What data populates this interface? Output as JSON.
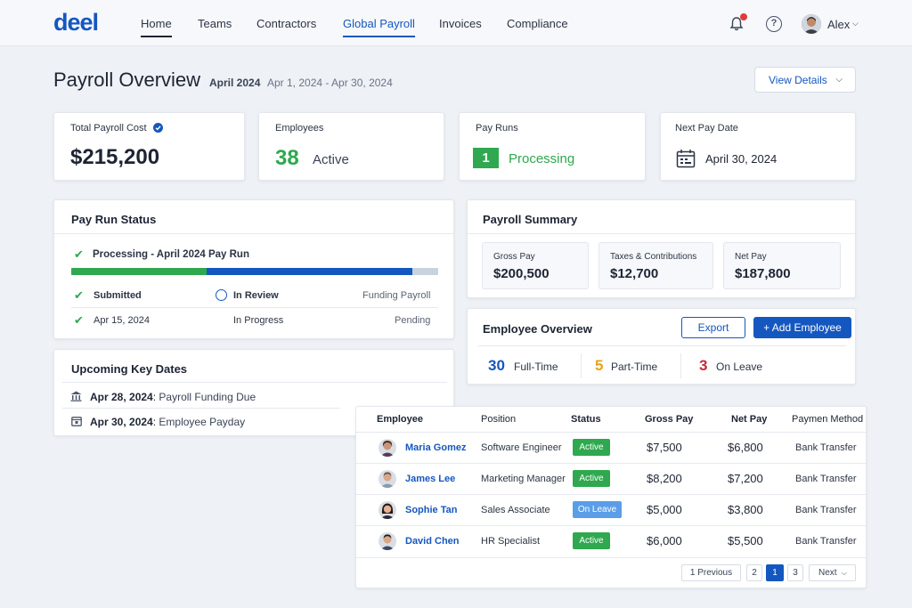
{
  "app": {
    "logo": "deel"
  },
  "nav": {
    "items": [
      "Home",
      "Teams",
      "Contractors",
      "Global Payroll",
      "Invoices",
      "Compliance"
    ]
  },
  "user": {
    "name": "Alex"
  },
  "header": {
    "title": "Payroll Overview",
    "period": "April 2024",
    "range": "Apr 1, 2024 - Apr 30, 2024",
    "view_details": "View Details"
  },
  "stats": {
    "total_cost_label": "Total Payroll Cost",
    "total_cost_value": "$215,200",
    "employees_label": "Employees",
    "employees_count": "38",
    "employees_state": "Active",
    "pay_runs_label": "Pay Runs",
    "pay_runs_count": "1",
    "pay_runs_state": "Processing",
    "next_pay_label": "Next Pay Date",
    "next_pay_value": "April 30, 2024"
  },
  "pay_run_status": {
    "title": "Pay Run Status",
    "headline": "Processing - April 2024 Pay Run",
    "progress": {
      "green_fraction": 0.37,
      "blue_fraction": 0.56
    },
    "steps": [
      "Submitted",
      "In Review",
      "Funding Payroll"
    ],
    "details": [
      "Apr 15, 2024",
      "In Progress",
      "Pending"
    ]
  },
  "key_dates": {
    "title": "Upcoming Key Dates",
    "items": [
      {
        "date": "Apr 28, 2024",
        "label": "Payroll Funding Due"
      },
      {
        "date": "Apr 30, 2024",
        "label": "Employee Payday"
      }
    ]
  },
  "summary": {
    "title": "Payroll Summary",
    "gross_label": "Gross Pay",
    "gross_value": "$200,500",
    "taxes_label": "Taxes & Contributions",
    "taxes_value": "$12,700",
    "net_label": "Net Pay",
    "net_value": "$187,800"
  },
  "employee_overview": {
    "title": "Employee Overview",
    "export": "Export",
    "add": "+ Add Employee",
    "fulltime_num": "30",
    "fulltime_label": "Full-Time",
    "parttime_num": "5",
    "parttime_label": "Part-Time",
    "leave_num": "3",
    "leave_label": "On Leave"
  },
  "table": {
    "headers": [
      "Employee",
      "Position",
      "Status",
      "Gross Pay",
      "Net Pay",
      "Paymen Method"
    ],
    "rows": [
      {
        "name": "Maria Gomez",
        "position": "Software Engineer",
        "status": "Active",
        "gross": "$7,500",
        "net": "$6,800",
        "method": "Bank Transfer"
      },
      {
        "name": "James Lee",
        "position": "Marketing Manager",
        "status": "Active",
        "gross": "$8,200",
        "net": "$7,200",
        "method": "Bank Transfer"
      },
      {
        "name": "Sophie Tan",
        "position": "Sales Associate",
        "status": "On Leave",
        "gross": "$5,000",
        "net": "$3,800",
        "method": "Bank Transfer"
      },
      {
        "name": "David Chen",
        "position": "HR Specialist",
        "status": "Active",
        "gross": "$6,000",
        "net": "$5,500",
        "method": "Bank Transfer"
      }
    ],
    "pagination": {
      "prev": "1  Previous",
      "pages": [
        "2",
        "1",
        "3"
      ],
      "next": "Next"
    }
  },
  "colors": {
    "brand": "#1557c0",
    "success": "#2fa84f",
    "leave": "#5b9ee8",
    "warning": "#e8a317",
    "danger": "#c8283a"
  }
}
